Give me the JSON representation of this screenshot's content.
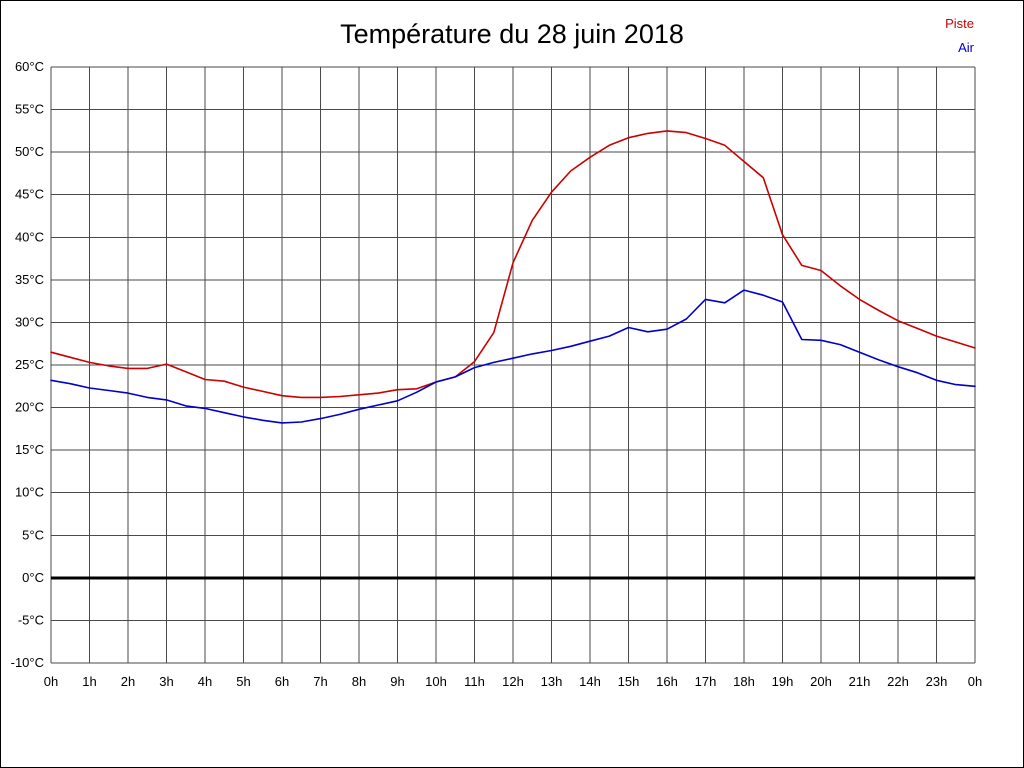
{
  "title": "Température du 28 juin 2018",
  "legend": [
    {
      "label": "Piste",
      "color": "#cc0000"
    },
    {
      "label": "Air",
      "color": "#0000cc"
    }
  ],
  "chart_data": {
    "type": "line",
    "title": "Température du 28 juin 2018",
    "xlabel": "",
    "ylabel": "",
    "xlim": [
      0,
      24
    ],
    "ylim": [
      -10,
      60
    ],
    "grid": true,
    "legend_position": "top-right",
    "zero_line": 0,
    "xticks": [
      {
        "value": 0,
        "label": "0h"
      },
      {
        "value": 1,
        "label": "1h"
      },
      {
        "value": 2,
        "label": "2h"
      },
      {
        "value": 3,
        "label": "3h"
      },
      {
        "value": 4,
        "label": "4h"
      },
      {
        "value": 5,
        "label": "5h"
      },
      {
        "value": 6,
        "label": "6h"
      },
      {
        "value": 7,
        "label": "7h"
      },
      {
        "value": 8,
        "label": "8h"
      },
      {
        "value": 9,
        "label": "9h"
      },
      {
        "value": 10,
        "label": "10h"
      },
      {
        "value": 11,
        "label": "11h"
      },
      {
        "value": 12,
        "label": "12h"
      },
      {
        "value": 13,
        "label": "13h"
      },
      {
        "value": 14,
        "label": "14h"
      },
      {
        "value": 15,
        "label": "15h"
      },
      {
        "value": 16,
        "label": "16h"
      },
      {
        "value": 17,
        "label": "17h"
      },
      {
        "value": 18,
        "label": "18h"
      },
      {
        "value": 19,
        "label": "19h"
      },
      {
        "value": 20,
        "label": "20h"
      },
      {
        "value": 21,
        "label": "21h"
      },
      {
        "value": 22,
        "label": "22h"
      },
      {
        "value": 23,
        "label": "23h"
      },
      {
        "value": 24,
        "label": "0h"
      }
    ],
    "yticks": [
      {
        "value": 60,
        "label": "60°C"
      },
      {
        "value": 55,
        "label": "55°C"
      },
      {
        "value": 50,
        "label": "50°C"
      },
      {
        "value": 45,
        "label": "45°C"
      },
      {
        "value": 40,
        "label": "40°C"
      },
      {
        "value": 35,
        "label": "35°C"
      },
      {
        "value": 30,
        "label": "30°C"
      },
      {
        "value": 25,
        "label": "25°C"
      },
      {
        "value": 20,
        "label": "20°C"
      },
      {
        "value": 15,
        "label": "15°C"
      },
      {
        "value": 10,
        "label": "10°C"
      },
      {
        "value": 5,
        "label": "5°C"
      },
      {
        "value": 0,
        "label": "0°C"
      },
      {
        "value": -5,
        "label": "-5°C"
      },
      {
        "value": -10,
        "label": "-10°C"
      }
    ],
    "x": [
      0,
      0.5,
      1,
      1.5,
      2,
      2.5,
      3,
      3.5,
      4,
      4.5,
      5,
      5.5,
      6,
      6.5,
      7,
      7.5,
      8,
      8.5,
      9,
      9.5,
      10,
      10.5,
      11,
      11.5,
      12,
      12.5,
      13,
      13.5,
      14,
      14.5,
      15,
      15.5,
      16,
      16.5,
      17,
      17.5,
      18,
      18.5,
      19,
      19.5,
      20,
      20.5,
      21,
      21.5,
      22,
      22.5,
      23,
      23.5,
      24
    ],
    "series": [
      {
        "name": "Piste",
        "color": "#cc0000",
        "values": [
          26.5,
          25.9,
          25.3,
          24.9,
          24.6,
          24.6,
          25.1,
          24.2,
          23.3,
          23.1,
          22.4,
          21.9,
          21.4,
          21.2,
          21.2,
          21.3,
          21.5,
          21.7,
          22.1,
          22.2,
          23.0,
          23.6,
          25.4,
          28.8,
          37.0,
          42.0,
          45.3,
          47.8,
          49.4,
          50.8,
          51.7,
          52.2,
          52.5,
          52.3,
          51.6,
          50.8,
          48.9,
          47.0,
          40.3,
          36.7,
          36.1,
          34.3,
          32.7,
          31.4,
          30.2,
          29.3,
          28.4,
          27.7,
          27.0
        ]
      },
      {
        "name": "Air",
        "color": "#0000cc",
        "values": [
          23.2,
          22.8,
          22.3,
          22.0,
          21.7,
          21.2,
          20.9,
          20.2,
          19.9,
          19.4,
          18.9,
          18.5,
          18.2,
          18.3,
          18.7,
          19.2,
          19.8,
          20.3,
          20.8,
          21.8,
          23.0,
          23.6,
          24.7,
          25.3,
          25.8,
          26.3,
          26.7,
          27.2,
          27.8,
          28.4,
          29.4,
          28.9,
          29.2,
          30.4,
          32.7,
          32.3,
          33.8,
          33.2,
          32.4,
          28.0,
          27.9,
          27.4,
          26.5,
          25.6,
          24.8,
          24.1,
          23.2,
          22.7,
          22.5
        ]
      }
    ]
  }
}
